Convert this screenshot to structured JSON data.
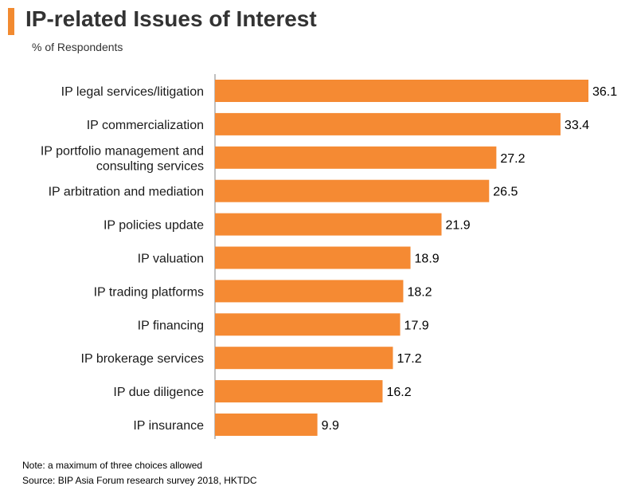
{
  "title": "IP-related Issues of Interest",
  "subtitle": "% of Respondents",
  "note": "Note: a maximum  of three choices allowed",
  "source": "Source: BIP Asia Forum research survey 2018, HKTDC",
  "colors": {
    "accent": "#f28a30",
    "bar": "#f58a33",
    "axis": "#808080"
  },
  "chart_data": {
    "type": "bar",
    "orientation": "horizontal",
    "title": "IP-related Issues of Interest",
    "ylabel": "% of Respondents",
    "xlim": [
      0,
      36.1
    ],
    "categories": [
      [
        "IP legal services/litigation"
      ],
      [
        "IP commercialization"
      ],
      [
        "IP portfolio management and",
        "consulting services"
      ],
      [
        "IP arbitration and mediation"
      ],
      [
        "IP policies update"
      ],
      [
        "IP valuation"
      ],
      [
        "IP trading platforms"
      ],
      [
        "IP financing"
      ],
      [
        "IP brokerage services"
      ],
      [
        "IP due diligence"
      ],
      [
        "IP insurance"
      ]
    ],
    "values": [
      36.1,
      33.4,
      27.2,
      26.5,
      21.9,
      18.9,
      18.2,
      17.9,
      17.2,
      16.2,
      9.9
    ]
  }
}
